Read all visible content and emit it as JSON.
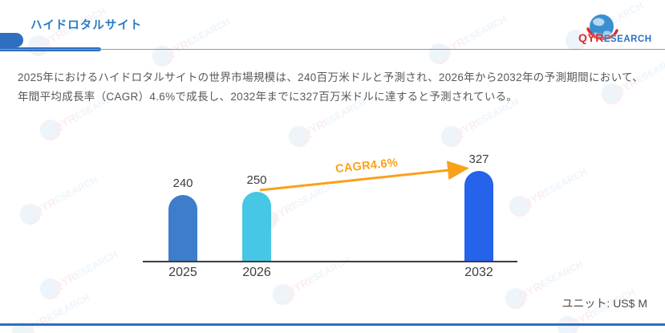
{
  "page": {
    "title": "ハイドロタルサイト",
    "description": "2025年におけるハイドロタルサイトの世界市場規模は、240百万米ドルと予測され、2026年から2032年の予測期間において、年間平均成長率（CAGR）4.6%で成長し、2032年までに327百万米ドルに達すると予測されている。",
    "unit_label": "ユニット: US$ M"
  },
  "logo": {
    "qyr": "QYR",
    "esearch": "ESEARCH"
  },
  "watermark": {
    "qyr": "QYR",
    "esearch": "ESEARCH"
  },
  "chart_data": {
    "type": "bar",
    "categories": [
      "2025",
      "2026",
      "2032"
    ],
    "values": [
      240,
      250,
      327
    ],
    "bar_colors": [
      "#3e7dca",
      "#45c7e5",
      "#2563eb"
    ],
    "value_labels": [
      "240",
      "250",
      "327"
    ],
    "annotation": "CAGR4.6%",
    "annotation_color": "#f9a11b",
    "title": "",
    "xlabel": "",
    "ylabel": "",
    "unit": "US$ M",
    "ylim": [
      0,
      350
    ],
    "grid": false,
    "legend": "none"
  },
  "colors": {
    "accent_blue": "#2e6fc0",
    "title_blue": "#2878c8",
    "text_gray": "#595959",
    "orange": "#f9a11b",
    "logo_red": "#d92b2b"
  }
}
